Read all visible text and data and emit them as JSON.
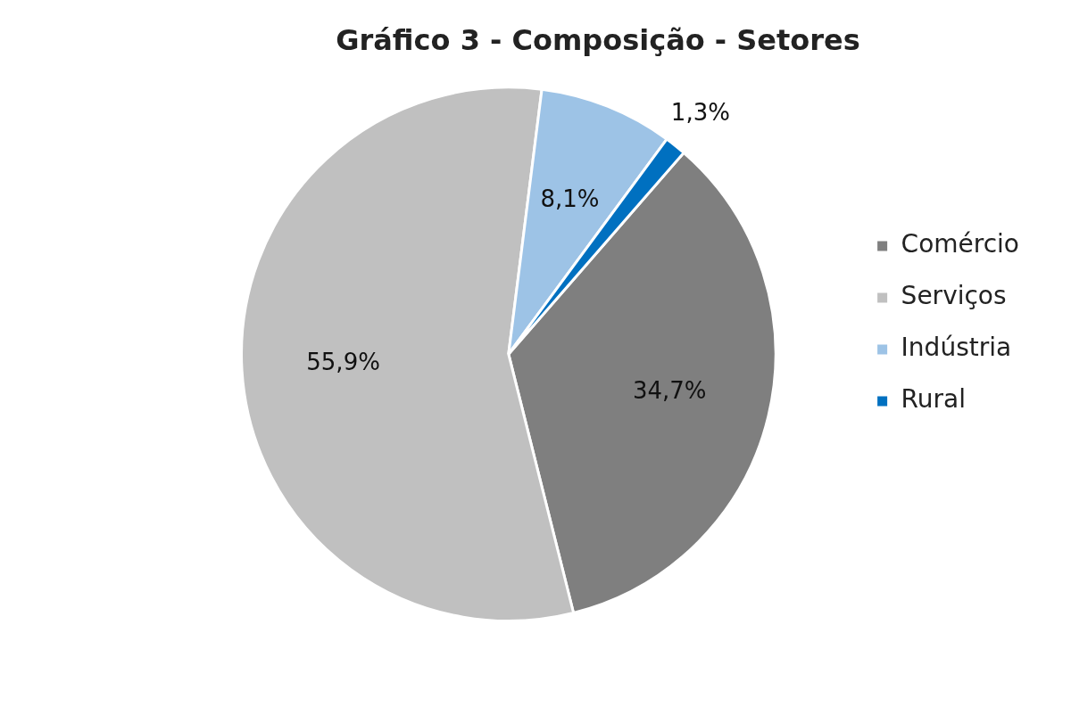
{
  "chart_data": {
    "type": "pie",
    "title": "Gráfico 3 - Composição - Setores",
    "categories": [
      "Comércio",
      "Serviços",
      "Indústria",
      "Rural"
    ],
    "values": [
      34.7,
      55.9,
      8.1,
      1.3
    ],
    "colors": [
      "#7f7f7f",
      "#c0c0c0",
      "#9dc3e6",
      "#0070c0"
    ],
    "value_labels": [
      "34,7%",
      "55,9%",
      "8,1%",
      "1,3%"
    ],
    "legend": "right"
  }
}
